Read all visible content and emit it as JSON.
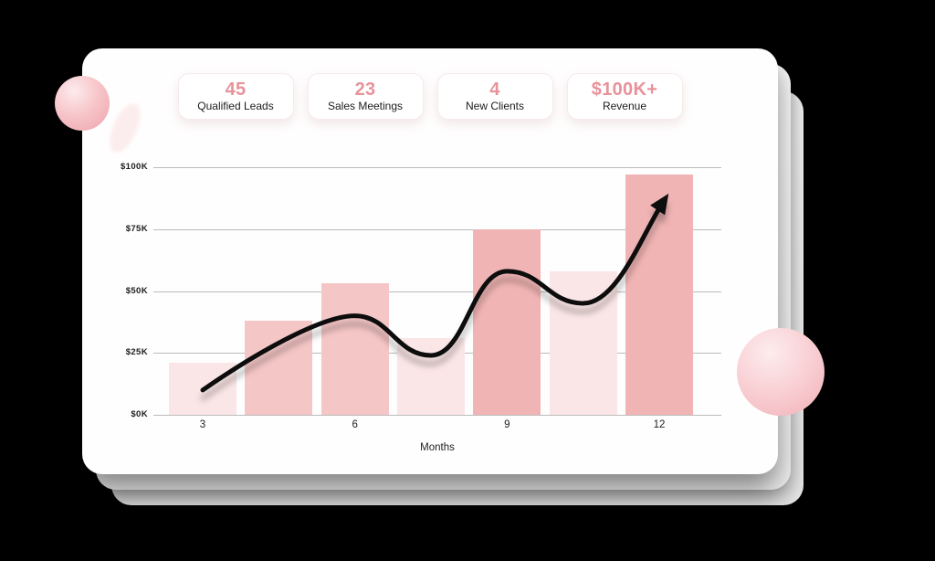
{
  "page": {
    "background": "#000000",
    "card_background": "#fffefe"
  },
  "stats": {
    "value_color": "#e8929a",
    "cards": [
      {
        "value": "45",
        "label": "Qualified Leads"
      },
      {
        "value": "23",
        "label": "Sales Meetings"
      },
      {
        "value": "4",
        "label": "New Clients"
      },
      {
        "value": "$100K+",
        "label": "Revenue"
      }
    ]
  },
  "chart_data": {
    "type": "bar",
    "title": "",
    "xlabel": "Months",
    "ylabel": "",
    "ylim_k": [
      0,
      100
    ],
    "grid": true,
    "y_ticks": [
      {
        "label": "$100K",
        "value_k": 100
      },
      {
        "label": "$75K",
        "value_k": 75
      },
      {
        "label": "$50K",
        "value_k": 50
      },
      {
        "label": "$25K",
        "value_k": 25
      },
      {
        "label": "$0K",
        "value_k": 0
      }
    ],
    "x_ticks": [
      {
        "label": "3",
        "month": 3
      },
      {
        "label": "6",
        "month": 6
      },
      {
        "label": "9",
        "month": 9
      },
      {
        "label": "12",
        "month": 12
      }
    ],
    "bars": {
      "months": [
        3,
        4.5,
        6,
        7.5,
        9,
        10.5,
        12
      ],
      "values_k": [
        21,
        38,
        53,
        31,
        75,
        58,
        97
      ],
      "shades": [
        "light",
        "medium",
        "medium",
        "light",
        "dark",
        "light",
        "dark"
      ],
      "colors": {
        "light": "#fbe6e7",
        "medium": "#f5c6c6",
        "dark": "#f1b4b4"
      }
    },
    "trend_line": {
      "color": "#0d0d0d",
      "arrow": true,
      "points": [
        {
          "month": 3,
          "value_k": 10
        },
        {
          "month": 6,
          "value_k": 40
        },
        {
          "month": 7.5,
          "value_k": 24
        },
        {
          "month": 9,
          "value_k": 58
        },
        {
          "month": 10.5,
          "value_k": 45
        },
        {
          "month": 12,
          "value_k": 87
        }
      ]
    }
  }
}
